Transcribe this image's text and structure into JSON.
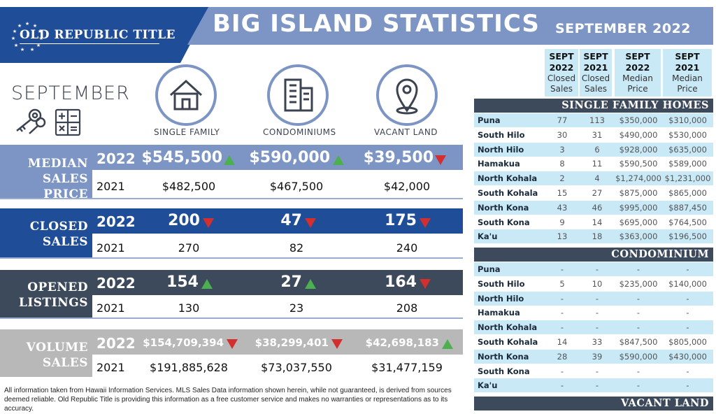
{
  "logo": {
    "text": "OLD REPUBLIC TITLE",
    "stars": "★★★★★★★★★★★"
  },
  "header": {
    "title": "BIG ISLAND STATISTICS",
    "month": "SEPTEMBER 2022"
  },
  "month_label": "SEPTEMBER",
  "categories": [
    {
      "label": "SINGLE FAMILY",
      "icon": "house-icon"
    },
    {
      "label": "CONDOMINIUMS",
      "icon": "building-icon"
    },
    {
      "label": "VACANT LAND",
      "icon": "location-pin-icon"
    }
  ],
  "metrics": [
    {
      "label_line1": "MEDIAN",
      "label_line2": "SALES PRICE",
      "year_new": "2022",
      "year_old": "2021",
      "new": [
        "$545,500",
        "$590,000",
        "$39,500"
      ],
      "trend": [
        "up",
        "up",
        "down"
      ],
      "old": [
        "$482,500",
        "$467,500",
        "$42,000"
      ]
    },
    {
      "label_line1": "CLOSED",
      "label_line2": "SALES",
      "year_new": "2022",
      "year_old": "2021",
      "new": [
        "200",
        "47",
        "175"
      ],
      "trend": [
        "down",
        "down",
        "down"
      ],
      "old": [
        "270",
        "82",
        "240"
      ]
    },
    {
      "label_line1": "OPENED",
      "label_line2": "LISTINGS",
      "year_new": "2022",
      "year_old": "2021",
      "new": [
        "154",
        "27",
        "164"
      ],
      "trend": [
        "up",
        "up",
        "down"
      ],
      "old": [
        "130",
        "23",
        "208"
      ]
    },
    {
      "label_line1": "VOLUME",
      "label_line2": "SALES",
      "year_new": "2022",
      "year_old": "2021",
      "new": [
        "$154,709,394",
        "$38,299,401",
        "$42,698,183"
      ],
      "trend": [
        "down",
        "down",
        "up"
      ],
      "old": [
        "$191,885,628",
        "$73,037,550",
        "$31,477,159"
      ]
    }
  ],
  "footnote": "All information taken from Hawaii Information Services.  MLS Sales Data information shown herein, while not guaranteed, is derived from sources deemed reliable.  Old Republic Title is providing this information as a free customer service and makes no warranties or representations as to its accuracy.",
  "table": {
    "columns": [
      {
        "l1": "SEPT",
        "l2": "2022",
        "l3": "Closed",
        "l4": "Sales"
      },
      {
        "l1": "SEPT",
        "l2": "2021",
        "l3": "Closed",
        "l4": "Sales"
      },
      {
        "l1": "SEPT",
        "l2": "2022",
        "l3": "Median",
        "l4": "Price"
      },
      {
        "l1": "SEPT",
        "l2": "2021",
        "l3": "Median",
        "l4": "Price"
      }
    ],
    "sections": [
      {
        "title": "SINGLE FAMILY HOMES",
        "rows": [
          [
            "Puna",
            "77",
            "113",
            "$350,000",
            "$310,000"
          ],
          [
            "South Hilo",
            "30",
            "31",
            "$490,000",
            "$530,000"
          ],
          [
            "North Hilo",
            "3",
            "6",
            "$928,000",
            "$635,000"
          ],
          [
            "Hamakua",
            "8",
            "11",
            "$590,500",
            "$589,000"
          ],
          [
            "North Kohala",
            "2",
            "4",
            "$1,274,000",
            "$1,231,000"
          ],
          [
            "South Kohala",
            "15",
            "27",
            "$875,000",
            "$865,000"
          ],
          [
            "North Kona",
            "43",
            "46",
            "$995,000",
            "$887,450"
          ],
          [
            "South Kona",
            "9",
            "14",
            "$695,000",
            "$764,500"
          ],
          [
            "Ka'u",
            "13",
            "18",
            "$363,000",
            "$196,500"
          ]
        ]
      },
      {
        "title": "CONDOMINIUM",
        "rows": [
          [
            "Puna",
            "-",
            "-",
            "-",
            "-"
          ],
          [
            "South Hilo",
            "5",
            "10",
            "$235,000",
            "$140,000"
          ],
          [
            "North Hilo",
            "-",
            "-",
            "-",
            "-"
          ],
          [
            "Hamakua",
            "-",
            "-",
            "-",
            "-"
          ],
          [
            "North Kohala",
            "-",
            "-",
            "-",
            "-"
          ],
          [
            "South Kohala",
            "14",
            "33",
            "$847,500",
            "$805,000"
          ],
          [
            "North Kona",
            "28",
            "39",
            "$590,000",
            "$430,000"
          ],
          [
            "South Kona",
            "-",
            "-",
            "-",
            "-"
          ],
          [
            "Ka'u",
            "-",
            "-",
            "-",
            "-"
          ]
        ]
      },
      {
        "title": "VACANT LAND",
        "rows": []
      }
    ]
  },
  "colors": {
    "brand_blue": "#1f4d98",
    "header_blue": "#7d95c4",
    "dark_slate": "#3d4a5c",
    "grey_band": "#b8b8b8",
    "light_cyan": "#c9e9f7",
    "up_green": "#4caf50",
    "down_red": "#d32f2f"
  }
}
